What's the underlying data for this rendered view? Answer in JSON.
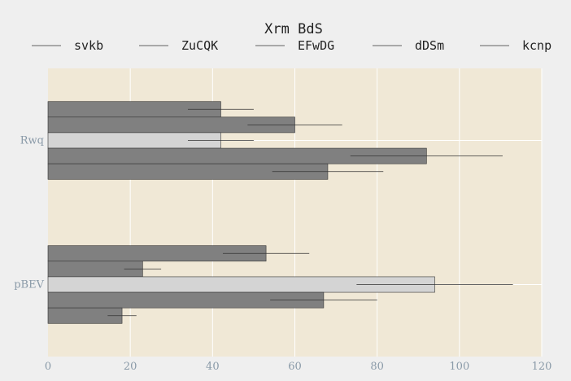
{
  "chart_data": {
    "type": "bar",
    "orientation": "horizontal",
    "title": "Xrm BdS",
    "xlabel": "",
    "ylabel": "",
    "xlim": [
      0,
      120
    ],
    "xticks": [
      0,
      20,
      40,
      60,
      80,
      100,
      120
    ],
    "grid": true,
    "legend_position": "top",
    "categories": [
      "Rwq",
      "pBEV"
    ],
    "series": [
      {
        "name": "svkb",
        "color": "#808080",
        "values": [
          42,
          53
        ],
        "errors": [
          8,
          10.5
        ]
      },
      {
        "name": "ZuCQK",
        "color": "#808080",
        "values": [
          60,
          23
        ],
        "errors": [
          11.5,
          4.5
        ]
      },
      {
        "name": "EFwDG",
        "color": "#d4d4d4",
        "values": [
          42,
          94
        ],
        "errors": [
          8,
          19
        ]
      },
      {
        "name": "dDSm",
        "color": "#808080",
        "values": [
          92,
          67
        ],
        "errors": [
          18.5,
          13
        ]
      },
      {
        "name": "kcnp",
        "color": "#808080",
        "values": [
          68,
          18
        ],
        "errors": [
          13.5,
          3.5
        ]
      }
    ],
    "colors": {
      "plot_background": "#f0e8d6",
      "figure_background": "#efefef",
      "grid": "#ffffff"
    }
  }
}
